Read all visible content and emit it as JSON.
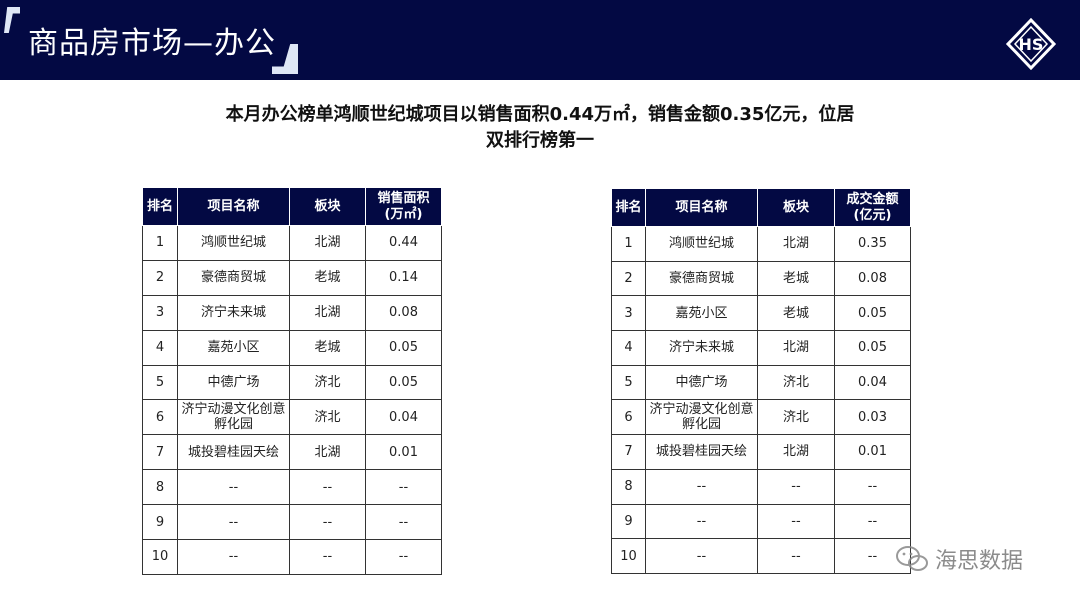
{
  "header": {
    "title": "商品房市场—办公",
    "logo": "HS"
  },
  "headline": [
    "本月办公榜单鸿顺世纪城项目以销售面积0.44万㎡，销售金额0.35亿元，位居",
    "双排行榜第一"
  ],
  "area_table": {
    "headers": [
      "排名",
      "项目名称",
      "板块",
      "销售面积\n(万㎡)"
    ],
    "rows": [
      [
        "1",
        "鸿顺世纪城",
        "北湖",
        "0.44"
      ],
      [
        "2",
        "豪德商贸城",
        "老城",
        "0.14"
      ],
      [
        "3",
        "济宁未来城",
        "北湖",
        "0.08"
      ],
      [
        "4",
        "嘉苑小区",
        "老城",
        "0.05"
      ],
      [
        "5",
        "中德广场",
        "济北",
        "0.05"
      ],
      [
        "6",
        "济宁动漫文化创意孵化园",
        "济北",
        "0.04"
      ],
      [
        "7",
        "城投碧桂园天绘",
        "北湖",
        "0.01"
      ],
      [
        "8",
        "--",
        "--",
        "--"
      ],
      [
        "9",
        "--",
        "--",
        "--"
      ],
      [
        "10",
        "--",
        "--",
        "--"
      ]
    ]
  },
  "amount_table": {
    "headers": [
      "排名",
      "项目名称",
      "板块",
      "成交金额\n(亿元)"
    ],
    "rows": [
      [
        "1",
        "鸿顺世纪城",
        "北湖",
        "0.35"
      ],
      [
        "2",
        "豪德商贸城",
        "老城",
        "0.08"
      ],
      [
        "3",
        "嘉苑小区",
        "老城",
        "0.05"
      ],
      [
        "4",
        "济宁未来城",
        "北湖",
        "0.05"
      ],
      [
        "5",
        "中德广场",
        "济北",
        "0.04"
      ],
      [
        "6",
        "济宁动漫文化创意孵化园",
        "济北",
        "0.03"
      ],
      [
        "7",
        "城投碧桂园天绘",
        "北湖",
        "0.01"
      ],
      [
        "8",
        "--",
        "--",
        "--"
      ],
      [
        "9",
        "--",
        "--",
        "--"
      ],
      [
        "10",
        "--",
        "--",
        "--"
      ]
    ]
  },
  "watermark": "海思数据"
}
